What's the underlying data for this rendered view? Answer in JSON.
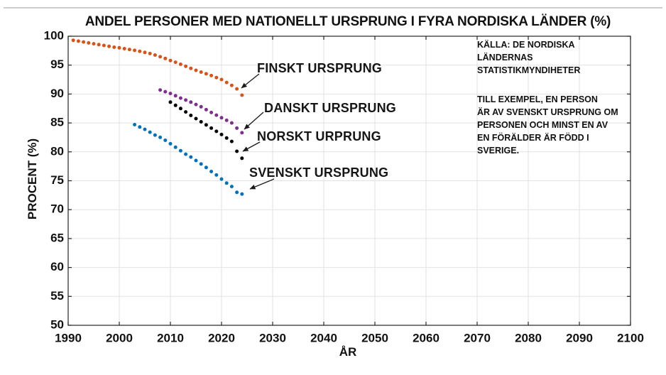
{
  "page": {
    "title": "ANDEL PERSONER MED NATIONELLT URSPRUNG I FYRA NORDISKA LÄNDER (%)"
  },
  "chart_data": {
    "type": "scatter",
    "title": "ANDEL PERSONER MED NATIONELLT URSPRUNG I FYRA NORDISKA LÄNDER (%)",
    "xlabel": "ÅR",
    "ylabel": "PROCENT (%)",
    "xlim": [
      1990,
      2100
    ],
    "ylim": [
      50,
      100
    ],
    "xticks": [
      1990,
      2000,
      2010,
      2020,
      2030,
      2040,
      2050,
      2060,
      2070,
      2080,
      2090,
      2100
    ],
    "yticks": [
      50,
      55,
      60,
      65,
      70,
      75,
      80,
      85,
      90,
      95,
      100
    ],
    "grid": true,
    "legend_position": "inline-labels-with-arrows",
    "series": [
      {
        "name": "FINSKT URSPRUNG",
        "color": "#d95319",
        "x": [
          1991,
          1992,
          1993,
          1994,
          1995,
          1996,
          1997,
          1998,
          1999,
          2000,
          2001,
          2002,
          2003,
          2004,
          2005,
          2006,
          2007,
          2008,
          2009,
          2010,
          2011,
          2012,
          2013,
          2014,
          2015,
          2016,
          2017,
          2018,
          2019,
          2020,
          2021,
          2022,
          2023,
          2024
        ],
        "y": [
          99.3,
          99.15,
          99.0,
          98.85,
          98.7,
          98.55,
          98.4,
          98.25,
          98.1,
          98.0,
          97.85,
          97.7,
          97.55,
          97.4,
          97.2,
          97.0,
          96.75,
          96.45,
          96.15,
          95.8,
          95.5,
          95.15,
          94.8,
          94.45,
          94.1,
          93.8,
          93.5,
          93.2,
          92.85,
          92.5,
          92.0,
          91.5,
          90.9,
          89.8
        ]
      },
      {
        "name": "DANSKT URSPRUNG",
        "color": "#7e2f8e",
        "x": [
          2008,
          2009,
          2010,
          2011,
          2012,
          2013,
          2014,
          2015,
          2016,
          2017,
          2018,
          2019,
          2020,
          2021,
          2022,
          2023,
          2024
        ],
        "y": [
          90.7,
          90.4,
          90.1,
          89.7,
          89.3,
          88.95,
          88.6,
          88.2,
          87.8,
          87.3,
          86.8,
          86.35,
          85.9,
          85.45,
          85.0,
          84.1,
          83.3
        ]
      },
      {
        "name": "NORSKT URPRUNG",
        "color": "#000000",
        "x": [
          2010,
          2011,
          2012,
          2013,
          2014,
          2015,
          2016,
          2017,
          2018,
          2019,
          2020,
          2021,
          2022,
          2023,
          2024
        ],
        "y": [
          88.6,
          88.05,
          87.5,
          86.9,
          86.3,
          85.75,
          85.2,
          84.65,
          84.1,
          83.55,
          83.0,
          82.4,
          81.8,
          80.1,
          78.9
        ]
      },
      {
        "name": "SVENSKT URSPRUNG",
        "color": "#0072bd",
        "x": [
          2003,
          2004,
          2005,
          2006,
          2007,
          2008,
          2009,
          2010,
          2011,
          2012,
          2013,
          2014,
          2015,
          2016,
          2017,
          2018,
          2019,
          2020,
          2021,
          2022,
          2023,
          2024
        ],
        "y": [
          84.7,
          84.3,
          83.9,
          83.4,
          82.9,
          82.5,
          82.0,
          81.4,
          80.8,
          80.2,
          79.6,
          79.1,
          78.5,
          77.9,
          77.3,
          76.6,
          76.0,
          75.3,
          74.6,
          74.0,
          73.0,
          72.7
        ]
      }
    ],
    "annotations": {
      "source": [
        "KÄLLA: DE NORDISKA",
        "LÄNDERNAS",
        "STATISTIKMYNDIHETER"
      ],
      "note": [
        "TILL EXEMPEL, EN PERSON",
        "ÄR AV SVENSKT URSPRUNG OM",
        "PERSONEN OCH MINST EN AV",
        "EN FÖRÄLDER ÄR FÖDD I",
        "SVERIGE."
      ]
    }
  }
}
